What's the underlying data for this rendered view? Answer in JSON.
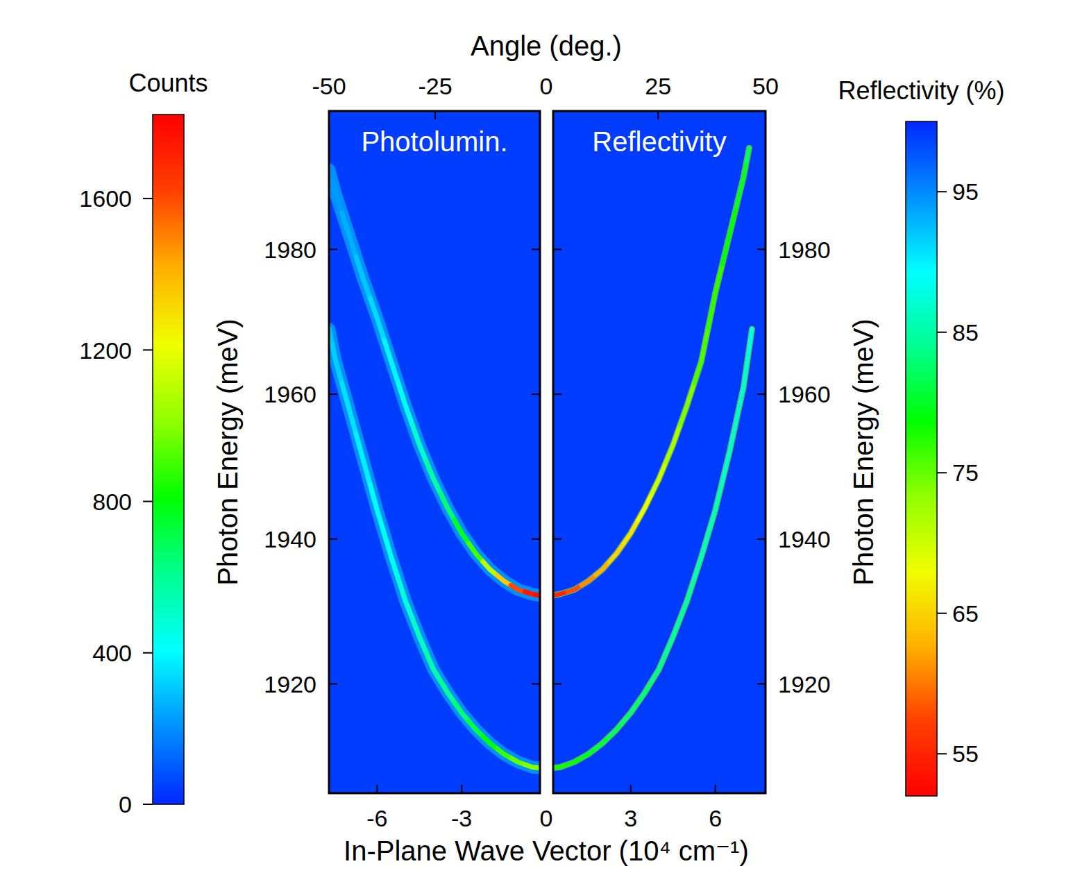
{
  "chart_data": {
    "type": "line",
    "xlabel": "In-Plane Wave Vector (10⁴ cm⁻¹)",
    "ylabel": "Photon Energy (meV)",
    "x2label": "Angle (deg.)",
    "ylim": [
      1904.9,
      1999.1
    ],
    "yticks": [
      1920,
      1940,
      1960,
      1980
    ],
    "xticks": [
      -6,
      -3,
      0,
      3,
      6
    ],
    "x2ticks": [
      {
        "value": -7.71,
        "label": "-50"
      },
      {
        "value": -3.94,
        "label": "-25"
      },
      {
        "value": 0,
        "label": "0"
      },
      {
        "value": 3.97,
        "label": "25"
      },
      {
        "value": 7.78,
        "label": "50"
      }
    ],
    "panels": [
      {
        "title": "Photolumin.",
        "xlim": [
          -7.71,
          -0.22
        ],
        "background": 40,
        "colorbar": {
          "label": "Counts",
          "range": [
            0,
            1822
          ],
          "ticks": [
            0,
            400,
            800,
            1200,
            1600
          ],
          "colors": [
            "#0028ff",
            "#0090ff",
            "#00ffff",
            "#00ff90",
            "#00ff00",
            "#90ff00",
            "#f0ff00",
            "#ffb000",
            "#ff4000",
            "#ff0000"
          ]
        },
        "series": [
          {
            "x": [
              -7.7,
              -7.5,
              -7,
              -6.5,
              -6,
              -5.5,
              -5,
              -4.5,
              -4,
              -3.5,
              -3,
              -2.5,
              -2,
              -1.5,
              -1,
              -0.5,
              -0.22
            ],
            "values": [
              1991,
              1988,
              1982,
              1976,
              1970.5,
              1964.5,
              1958.5,
              1953,
              1948.3,
              1944.3,
              1940.8,
              1938,
              1935.8,
              1934.2,
              1933,
              1932.4,
              1932.2
            ],
            "intensity": [
              200,
              220,
              260,
              300,
              340,
              390,
              440,
              500,
              570,
              650,
              760,
              900,
              1100,
              1350,
              1600,
              1750,
              1780
            ]
          },
          {
            "x": [
              -7.7,
              -7.5,
              -7,
              -6.5,
              -6,
              -5.5,
              -5,
              -4.5,
              -4,
              -3.5,
              -3,
              -2.5,
              -2,
              -1.5,
              -1,
              -0.5,
              -0.22
            ],
            "values": [
              1969,
              1965,
              1958,
              1951,
              1944,
              1937.5,
              1931.5,
              1926.5,
              1922,
              1918.8,
              1916,
              1913.7,
              1911.8,
              1910.3,
              1909.2,
              1908.5,
              1908.4
            ],
            "intensity": [
              300,
              320,
              350,
              380,
              410,
              440,
              480,
              520,
              560,
              600,
              650,
              720,
              800,
              880,
              950,
              1000,
              1000
            ]
          }
        ]
      },
      {
        "title": "Reflectivity",
        "xlim": [
          0.25,
          7.78
        ],
        "background": 99,
        "colorbar": {
          "label": "Reflectivity (%)",
          "range": [
            52,
            100
          ],
          "ticks": [
            95,
            85,
            75,
            65,
            55
          ],
          "colors": [
            "#ff0000",
            "#ff4000",
            "#ffb000",
            "#f0ff00",
            "#90ff00",
            "#00ff00",
            "#00ff90",
            "#00ffff",
            "#0090ff",
            "#0028ff"
          ]
        },
        "series": [
          {
            "x": [
              0.25,
              0.5,
              1,
              1.5,
              2,
              2.5,
              3,
              3.5,
              4,
              4.5,
              5,
              5.5,
              6,
              6.5,
              7,
              7.2
            ],
            "values": [
              1932.2,
              1932.4,
              1933,
              1934.2,
              1935.8,
              1938,
              1940.8,
              1944.3,
              1948.3,
              1953,
              1958.5,
              1964.5,
              1974,
              1982,
              1990,
              1994
            ],
            "intensity": [
              54,
              55,
              58,
              61,
              63,
              65,
              66,
              68,
              70,
              72,
              74,
              76,
              77,
              79,
              80,
              82
            ]
          },
          {
            "x": [
              0.25,
              0.5,
              1,
              1.5,
              2,
              2.5,
              3,
              3.5,
              4,
              4.5,
              5,
              5.5,
              6,
              6.5,
              7,
              7.3
            ],
            "values": [
              1908.4,
              1908.5,
              1909.2,
              1910.3,
              1911.8,
              1913.7,
              1916,
              1918.8,
              1922,
              1926.5,
              1931.5,
              1937.5,
              1944,
              1952,
              1961,
              1969
            ],
            "intensity": [
              78,
              78,
              79,
              80,
              81,
              82,
              83,
              83,
              84,
              85,
              85,
              86,
              86,
              87,
              87,
              88
            ]
          }
        ]
      }
    ]
  }
}
